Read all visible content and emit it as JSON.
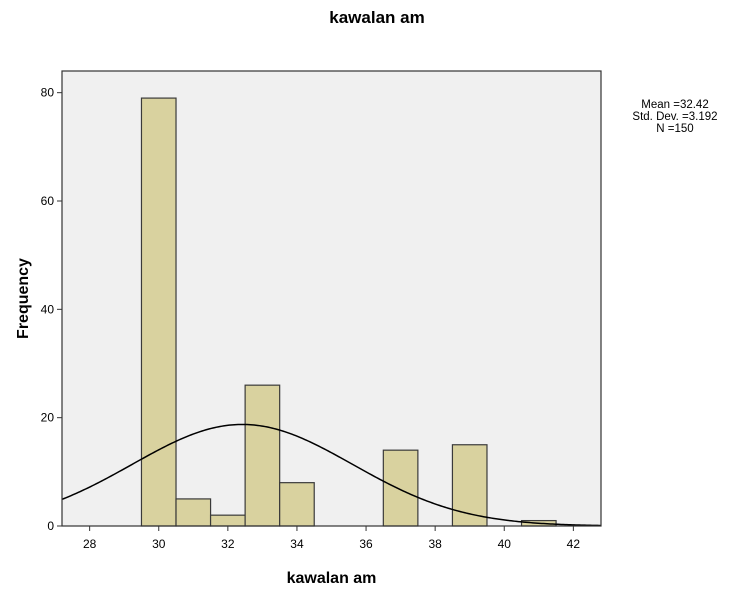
{
  "chart_data": {
    "type": "bar",
    "title": "kawalan am",
    "xlabel": "kawalan am",
    "ylabel": "Frequency",
    "xlim": [
      27.2,
      42.8
    ],
    "ylim": [
      0,
      84
    ],
    "xticks": [
      28,
      30,
      32,
      34,
      36,
      38,
      40,
      42
    ],
    "yticks": [
      0,
      20,
      40,
      60,
      80
    ],
    "bin_width": 1,
    "bins": [
      {
        "start": 29.5,
        "end": 30.5,
        "count": 79
      },
      {
        "start": 30.5,
        "end": 31.5,
        "count": 5
      },
      {
        "start": 31.5,
        "end": 32.5,
        "count": 2
      },
      {
        "start": 32.5,
        "end": 33.5,
        "count": 26
      },
      {
        "start": 33.5,
        "end": 34.5,
        "count": 8
      },
      {
        "start": 34.5,
        "end": 35.5,
        "count": 0
      },
      {
        "start": 35.5,
        "end": 36.5,
        "count": 0
      },
      {
        "start": 36.5,
        "end": 37.5,
        "count": 14
      },
      {
        "start": 37.5,
        "end": 38.5,
        "count": 0
      },
      {
        "start": 38.5,
        "end": 39.5,
        "count": 15
      },
      {
        "start": 39.5,
        "end": 40.5,
        "count": 0
      },
      {
        "start": 40.5,
        "end": 41.5,
        "count": 1
      }
    ],
    "normal_curve": {
      "mean": 32.42,
      "sd": 3.192,
      "n": 150
    },
    "stats_text": [
      "Mean =32.42",
      "Std. Dev. =3.192",
      "N =150"
    ],
    "grid": false,
    "colors": {
      "bar_fill": "#d9d29f",
      "bar_stroke": "#3a3a3a",
      "plot_background": "#f0f0f0",
      "curve": "#000000"
    }
  }
}
